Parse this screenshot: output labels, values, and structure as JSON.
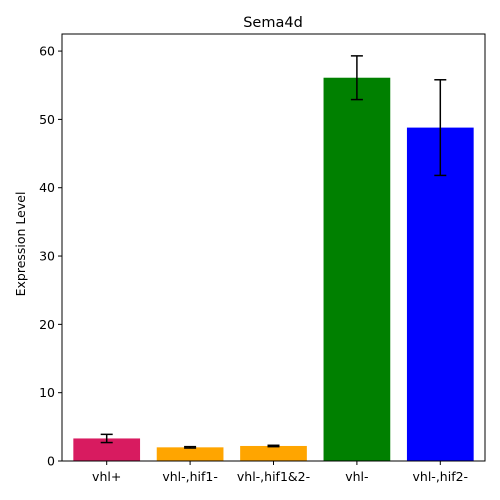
{
  "chart_data": {
    "type": "bar",
    "title": "Sema4d",
    "xlabel": "",
    "ylabel": "Expression Level",
    "categories": [
      "vhl+",
      "vhl-,hif1-",
      "vhl-,hif1&2-",
      "vhl-",
      "vhl-,hif2-"
    ],
    "values": [
      3.3,
      2.0,
      2.2,
      56.1,
      48.8
    ],
    "errors": [
      0.6,
      0.1,
      0.1,
      3.2,
      7.0
    ],
    "colors": [
      "#d81b60",
      "#ffa500",
      "#ffa500",
      "#008000",
      "#0000ff"
    ],
    "ylim": [
      0,
      62.5
    ],
    "yticks": [
      0,
      10,
      20,
      30,
      40,
      50,
      60
    ],
    "grid": false,
    "legend": "none"
  }
}
